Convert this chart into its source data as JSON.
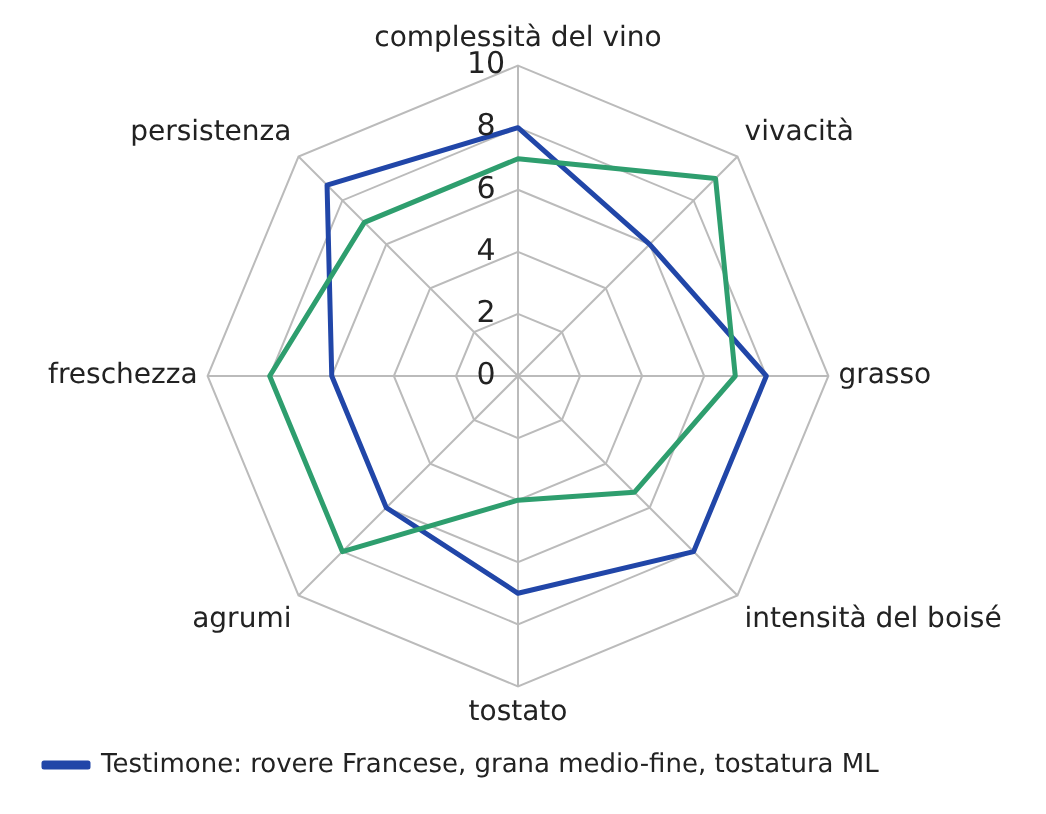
{
  "chart_data": {
    "type": "radar",
    "categories": [
      "complessità del vino",
      "vivacità",
      "grasso",
      "intensità del boisé",
      "tostato",
      "agrumi",
      "freschezza",
      "persistenza"
    ],
    "series": [
      {
        "color": "#2e9e6e",
        "values": [
          7,
          9,
          7,
          5.3,
          4,
          8,
          8,
          7
        ]
      },
      {
        "name": "Testimone: rovere Francese, grana medio-fine, tostatura ML",
        "color": "#2146a8",
        "values": [
          8,
          6,
          8,
          8,
          7,
          6,
          6,
          8.7
        ]
      }
    ],
    "ylim": [
      0,
      10
    ],
    "yticks": [
      0,
      2,
      4,
      6,
      8,
      10
    ],
    "grid": true,
    "legend": "bottom left",
    "marker": "none"
  }
}
